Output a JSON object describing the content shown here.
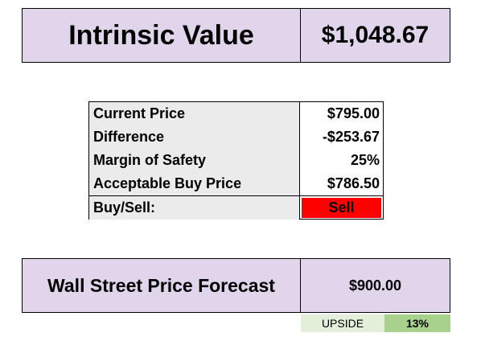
{
  "intrinsic": {
    "label": "Intrinsic Value",
    "value": "$1,048.67"
  },
  "table": {
    "rows": [
      {
        "label": "Current Price",
        "value": "$795.00"
      },
      {
        "label": "Difference",
        "value": "-$253.67"
      },
      {
        "label": "Margin of Safety",
        "value": "25%"
      },
      {
        "label": "Acceptable Buy Price",
        "value": "$786.50"
      },
      {
        "label": "Buy/Sell:",
        "value": "Sell"
      }
    ]
  },
  "wall_street": {
    "label": "Wall Street Price Forecast",
    "value": "$900.00"
  },
  "upside": {
    "label": "UPSIDE",
    "value": "13%"
  },
  "colors": {
    "header_fill": "#e1d5ec",
    "label_fill": "#ebebeb",
    "sell_fill": "#ff0000",
    "upside_label_fill": "#e3efd9",
    "upside_value_fill": "#a9d18e"
  }
}
